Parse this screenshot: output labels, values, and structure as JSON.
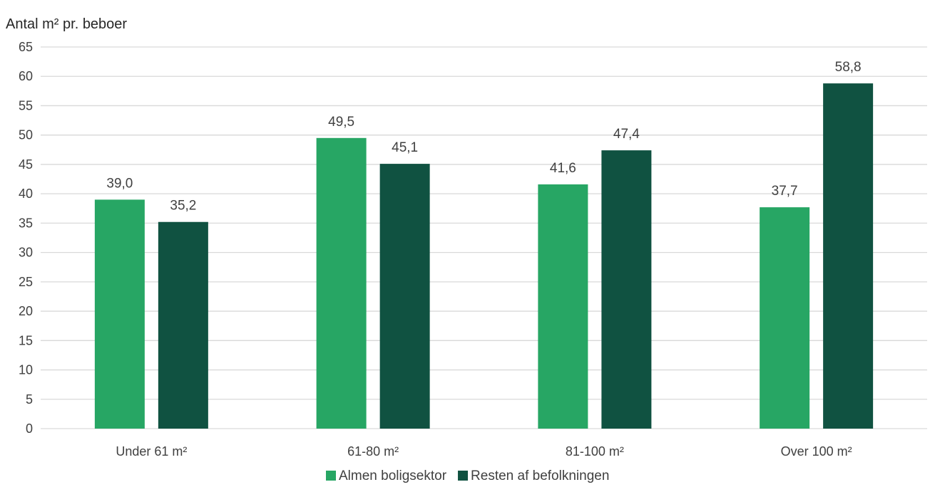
{
  "chart_data": {
    "type": "bar",
    "ylabel": "Antal m² pr. beboer",
    "categories": [
      "Under 61 m²",
      "61-80 m²",
      "81-100 m²",
      "Over 100 m²"
    ],
    "series": [
      {
        "name": "Almen boligsektor",
        "values": [
          39.0,
          49.5,
          41.6,
          37.7
        ],
        "labels": [
          "39,0",
          "49,5",
          "41,6",
          "37,7"
        ],
        "color": "#27a664"
      },
      {
        "name": "Resten af befolkningen",
        "values": [
          35.2,
          45.1,
          47.4,
          58.8
        ],
        "labels": [
          "35,2",
          "45,1",
          "47,4",
          "58,8"
        ],
        "color": "#105241"
      }
    ],
    "ylim": [
      0,
      65
    ],
    "yticks": [
      0,
      5,
      10,
      15,
      20,
      25,
      30,
      35,
      40,
      45,
      50,
      55,
      60,
      65
    ],
    "grid": true,
    "legend_position": "bottom"
  }
}
